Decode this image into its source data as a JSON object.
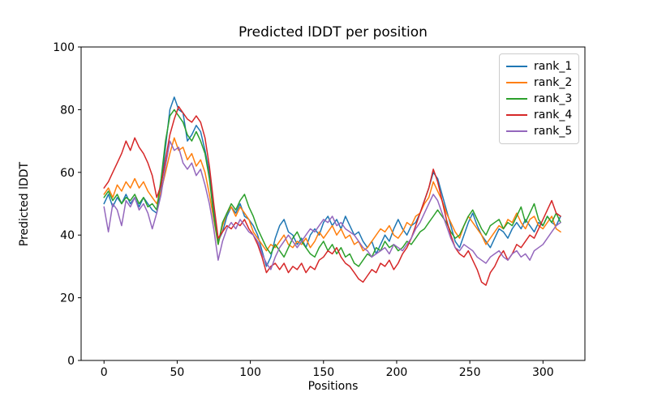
{
  "chart_data": {
    "type": "line",
    "title": "Predicted lDDT per position",
    "xlabel": "Positions",
    "ylabel": "Predicted lDDT",
    "xlim": [
      -15.65,
      328.65
    ],
    "ylim": [
      0,
      100
    ],
    "xticks": [
      0,
      50,
      100,
      150,
      200,
      250,
      300
    ],
    "yticks": [
      0,
      20,
      40,
      60,
      80,
      100
    ],
    "grid": false,
    "legend_position": "upper right",
    "x": [
      0,
      3,
      6,
      9,
      12,
      15,
      18,
      21,
      24,
      27,
      30,
      33,
      36,
      39,
      42,
      45,
      48,
      51,
      54,
      57,
      60,
      63,
      66,
      69,
      72,
      75,
      78,
      81,
      84,
      87,
      90,
      93,
      96,
      99,
      102,
      105,
      108,
      111,
      114,
      117,
      120,
      123,
      126,
      129,
      132,
      135,
      138,
      141,
      144,
      147,
      150,
      153,
      156,
      159,
      162,
      165,
      168,
      171,
      174,
      177,
      180,
      183,
      186,
      189,
      192,
      195,
      198,
      201,
      204,
      207,
      210,
      213,
      216,
      219,
      222,
      225,
      228,
      231,
      234,
      237,
      240,
      243,
      246,
      249,
      252,
      255,
      258,
      261,
      264,
      267,
      270,
      273,
      276,
      279,
      282,
      285,
      288,
      291,
      294,
      297,
      300,
      303,
      306,
      309,
      312
    ],
    "series": [
      {
        "name": "rank_1",
        "color": "#1f77b4",
        "values": [
          50,
          53,
          49,
          52,
          50,
          53,
          50,
          52,
          49,
          52,
          50,
          48,
          47,
          55,
          68,
          80,
          84,
          80,
          79,
          70,
          72,
          75,
          73,
          67,
          60,
          48,
          38,
          41,
          46,
          49,
          47,
          50,
          46,
          45,
          43,
          40,
          35,
          30,
          33,
          39,
          43,
          45,
          41,
          40,
          37,
          39,
          36,
          40,
          42,
          40,
          44,
          46,
          43,
          45,
          42,
          46,
          43,
          40,
          41,
          38,
          36,
          38,
          34,
          37,
          40,
          38,
          42,
          45,
          42,
          40,
          43,
          44,
          47,
          51,
          55,
          60,
          58,
          53,
          48,
          43,
          38,
          36,
          40,
          44,
          47,
          43,
          40,
          38,
          36,
          39,
          42,
          41,
          39,
          42,
          44,
          42,
          45,
          43,
          41,
          44,
          43,
          46,
          44,
          43,
          46
        ]
      },
      {
        "name": "rank_2",
        "color": "#ff7f0e",
        "values": [
          53,
          55,
          52,
          56,
          54,
          57,
          55,
          58,
          55,
          57,
          54,
          52,
          50,
          54,
          60,
          66,
          71,
          67,
          68,
          64,
          66,
          62,
          64,
          60,
          53,
          45,
          37,
          43,
          47,
          49,
          46,
          49,
          47,
          45,
          41,
          39,
          37,
          35,
          37,
          36,
          38,
          40,
          37,
          36,
          38,
          37,
          39,
          36,
          38,
          41,
          39,
          41,
          43,
          40,
          42,
          39,
          40,
          37,
          38,
          35,
          36,
          38,
          40,
          42,
          41,
          43,
          40,
          39,
          41,
          44,
          43,
          46,
          47,
          50,
          52,
          57,
          54,
          51,
          47,
          44,
          41,
          39,
          43,
          46,
          44,
          42,
          40,
          37,
          39,
          41,
          43,
          42,
          45,
          44,
          47,
          44,
          42,
          45,
          46,
          43,
          42,
          44,
          46,
          42,
          41
        ]
      },
      {
        "name": "rank_3",
        "color": "#2ca02c",
        "values": [
          52,
          54,
          51,
          53,
          50,
          52,
          51,
          53,
          50,
          52,
          49,
          50,
          48,
          58,
          70,
          78,
          80,
          78,
          76,
          72,
          70,
          73,
          70,
          66,
          58,
          46,
          37,
          44,
          47,
          50,
          48,
          51,
          53,
          49,
          46,
          42,
          39,
          36,
          34,
          37,
          35,
          33,
          36,
          39,
          41,
          38,
          36,
          34,
          33,
          36,
          38,
          35,
          37,
          34,
          36,
          33,
          34,
          31,
          30,
          32,
          34,
          33,
          36,
          35,
          38,
          36,
          37,
          35,
          36,
          38,
          37,
          39,
          41,
          42,
          44,
          46,
          48,
          46,
          44,
          41,
          39,
          40,
          43,
          46,
          48,
          45,
          42,
          40,
          43,
          44,
          45,
          42,
          44,
          43,
          46,
          49,
          44,
          47,
          50,
          45,
          43,
          46,
          44,
          47,
          44
        ]
      },
      {
        "name": "rank_4",
        "color": "#d62728",
        "values": [
          55,
          57,
          60,
          63,
          66,
          70,
          67,
          71,
          68,
          66,
          63,
          59,
          52,
          56,
          64,
          72,
          77,
          81,
          79,
          77,
          76,
          78,
          76,
          71,
          62,
          50,
          39,
          41,
          43,
          42,
          44,
          43,
          45,
          42,
          40,
          37,
          33,
          28,
          30,
          31,
          29,
          31,
          28,
          30,
          29,
          31,
          28,
          30,
          29,
          32,
          33,
          35,
          34,
          36,
          33,
          31,
          30,
          28,
          26,
          25,
          27,
          29,
          28,
          31,
          30,
          32,
          29,
          31,
          34,
          36,
          39,
          43,
          47,
          51,
          55,
          61,
          57,
          51,
          45,
          40,
          36,
          34,
          33,
          35,
          32,
          29,
          25,
          24,
          28,
          30,
          33,
          35,
          32,
          34,
          37,
          36,
          38,
          40,
          39,
          42,
          45,
          48,
          51,
          47,
          46
        ]
      },
      {
        "name": "rank_5",
        "color": "#9467bd",
        "values": [
          49,
          41,
          50,
          48,
          43,
          51,
          49,
          52,
          48,
          50,
          47,
          42,
          47,
          53,
          62,
          70,
          67,
          68,
          63,
          61,
          63,
          59,
          61,
          56,
          50,
          42,
          32,
          38,
          42,
          44,
          42,
          45,
          43,
          41,
          40,
          38,
          34,
          31,
          29,
          33,
          36,
          38,
          40,
          38,
          36,
          38,
          40,
          42,
          41,
          43,
          45,
          44,
          46,
          43,
          44,
          42,
          41,
          40,
          38,
          36,
          35,
          33,
          34,
          35,
          36,
          34,
          37,
          36,
          35,
          37,
          39,
          42,
          44,
          47,
          50,
          53,
          51,
          47,
          43,
          39,
          36,
          35,
          37,
          36,
          35,
          33,
          32,
          31,
          33,
          34,
          35,
          33,
          32,
          34,
          35,
          33,
          34,
          32,
          35,
          36,
          37,
          39,
          41,
          43,
          44
        ]
      }
    ]
  }
}
